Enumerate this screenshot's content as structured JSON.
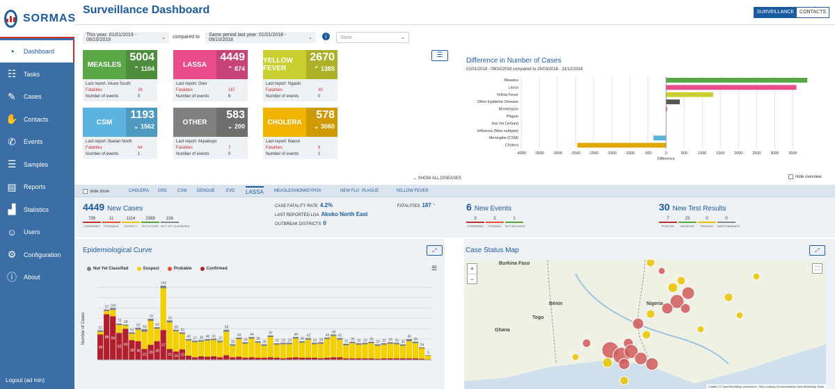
{
  "app": {
    "logo_text": "SORMAS",
    "title": "Surveillance Dashboard"
  },
  "sidebar": {
    "items": [
      {
        "label": "Dashboard",
        "icon": "dashboard-icon",
        "active": true
      },
      {
        "label": "Tasks",
        "icon": "tasks-icon"
      },
      {
        "label": "Cases",
        "icon": "edit-icon"
      },
      {
        "label": "Contacts",
        "icon": "hand-icon"
      },
      {
        "label": "Events",
        "icon": "phone-icon"
      },
      {
        "label": "Samples",
        "icon": "database-icon"
      },
      {
        "label": "Reports",
        "icon": "document-icon"
      },
      {
        "label": "Statistics",
        "icon": "bar-chart-icon"
      },
      {
        "label": "Users",
        "icon": "users-icon"
      },
      {
        "label": "Configuration",
        "icon": "cogs-icon"
      },
      {
        "label": "About",
        "icon": "info-icon"
      }
    ],
    "logout": "Logout (ad min)"
  },
  "header": {
    "toggle": [
      "SURVEILLANCE",
      "CONTACTS"
    ]
  },
  "filters": {
    "date_range": "This year: 01/01/2019 - 09/10/2019",
    "compared_to": "compared to",
    "comparison": "Same period last year: 01/01/2018 - 09/10/2018",
    "state_placeholder": "State"
  },
  "disease_cards": [
    {
      "name": "MEASLES",
      "total": "5004",
      "delta": "1104",
      "trend": "up",
      "color": "#5aa646",
      "last_report": "Last report: Akure South",
      "fatalities": "26",
      "events": "0"
    },
    {
      "name": "LASSA",
      "total": "4449",
      "delta": "874",
      "trend": "up",
      "color": "#e84d8a",
      "last_report": "Last report: Owo",
      "fatalities": "187",
      "events": "6"
    },
    {
      "name": "YELLOW FEVER",
      "total": "2670",
      "delta": "1385",
      "trend": "up",
      "color": "#c9cf2e",
      "last_report": "Last report: Ngaski",
      "fatalities": "30",
      "events": "0"
    },
    {
      "name": "CSM",
      "total": "1193",
      "delta": "1562",
      "trend": "down",
      "color": "#5bb3e0",
      "last_report": "Last report: Ibadan North",
      "fatalities": "64",
      "events": "1"
    },
    {
      "name": "OTHER",
      "total": "583",
      "delta": "200",
      "trend": "down",
      "color": "#808080",
      "last_report": "Last report: Akpabuyo",
      "fatalities": "7",
      "events": "0"
    },
    {
      "name": "CHOLERA",
      "total": "578",
      "delta": "3060",
      "trend": "down",
      "color": "#f0b400",
      "last_report": "Last report: Bakori",
      "fatalities": "9",
      "events": "1"
    }
  ],
  "card_labels": {
    "fatalities": "Fatalities",
    "events": "Number of events"
  },
  "show_all": "SHOW ALL DISEASES",
  "hide_overview": "Hide overview",
  "chart_data": {
    "type": "bar",
    "orientation": "horizontal",
    "title": "Difference in Number of Cases",
    "subtitle": "01/01/2019 - 09/10/2019 compared to 25/03/2018 - 31/12/2018",
    "xlabel": "Difference",
    "categories": [
      "Measles",
      "Lassa",
      "Yellow Fever",
      "Other Epidemic Disease",
      "Monkeypox",
      "Plague",
      "Not Yet Defined",
      "Influenza (New subtype)",
      "Meningitis (CSM)",
      "Cholera"
    ],
    "values": [
      3900,
      3600,
      1300,
      380,
      20,
      0,
      0,
      0,
      -350,
      -2450
    ],
    "colors": [
      "#5aa646",
      "#e84d8a",
      "#c9cf2e",
      "#555555",
      "#e84d8a",
      "#888888",
      "#888888",
      "#888888",
      "#5bb3e0",
      "#e0a800"
    ],
    "xlim": [
      -4000,
      3800
    ],
    "xticks": [
      -4000,
      -3500,
      -3000,
      -2500,
      -2000,
      -1500,
      -1000,
      -500,
      0,
      500,
      1000,
      1500,
      2000,
      2500,
      3000,
      3500
    ],
    "grid": true
  },
  "disease_tabs": {
    "slide_show": "slide show",
    "items": [
      "CHOLERA",
      "CRS",
      "CSM",
      "DENGUE",
      "EVD",
      "LASSA",
      "MEASLES",
      "MONKEYPOX",
      "NEW FLU",
      "PLAGUE",
      "YELLOW FEVER"
    ],
    "active": "LASSA"
  },
  "stats": {
    "new_cases": {
      "count": "4449",
      "label": "New Cases",
      "breakdown": [
        {
          "value": "739",
          "label": "CONFIRMED",
          "color": "#c52b2b"
        },
        {
          "value": "11",
          "label": "PROBABLE",
          "color": "#e8502b"
        },
        {
          "value": "1114",
          "label": "SUSPECT",
          "color": "#e8c400"
        },
        {
          "value": "2369",
          "label": "NOT A CASE",
          "color": "#5aa646"
        },
        {
          "value": "216",
          "label": "NOT YET CLASSIFIED",
          "color": "#888888"
        }
      ]
    },
    "cfr_label": "CASE FATALITY RATE",
    "cfr_value": "4.2%",
    "fatalities_label": "FATALITIES",
    "fatalities_value": "187",
    "lga_label": "LAST REPORTED LGA",
    "lga_value": "Akoko North East",
    "outbreak_label": "OUTBREAK DISTRICTS",
    "outbreak_value": "0",
    "new_events": {
      "count": "6",
      "label": "New Events",
      "breakdown": [
        {
          "value": "3",
          "label": "CONFIRMED",
          "color": "#c52b2b"
        },
        {
          "value": "2",
          "label": "POSSIBLE",
          "color": "#e8502b"
        },
        {
          "value": "1",
          "label": "NOT AN EVENT",
          "color": "#5aa646"
        }
      ]
    },
    "new_tests": {
      "count": "30",
      "label": "New Test Results",
      "breakdown": [
        {
          "value": "7",
          "label": "POSITIVE",
          "color": "#c52b2b"
        },
        {
          "value": "23",
          "label": "NEGATIVE",
          "color": "#5aa646"
        },
        {
          "value": "0",
          "label": "PENDING",
          "color": "#e8c400"
        },
        {
          "value": "0",
          "label": "INDETERMINATE",
          "color": "#888888"
        }
      ]
    }
  },
  "epi_curve": {
    "title": "Epidemiological Curve",
    "ylabel": "Number of Cases",
    "series_colors": {
      "not_yet_classified": "#808080",
      "suspect": "#f5d000",
      "probable": "#e8502b",
      "confirmed": "#b21e2b"
    },
    "legend": [
      "Not Yet Classified",
      "Suspect",
      "Probable",
      "Confirmed"
    ],
    "ylim": [
      0,
      150
    ],
    "totals": [
      57,
      97,
      100,
      70,
      68,
      53,
      62,
      59,
      79,
      63,
      143,
      76,
      58,
      53,
      40,
      37,
      38,
      40,
      41,
      37,
      58,
      30,
      43,
      34,
      44,
      36,
      30,
      47,
      32,
      33,
      33,
      44,
      36,
      42,
      33,
      34,
      43,
      49,
      42,
      31,
      35,
      32,
      33,
      35,
      30,
      32,
      34,
      33,
      30,
      40,
      35,
      24,
      9
    ],
    "confirmed": [
      49,
      88,
      84,
      52,
      60,
      38,
      36,
      21,
      29,
      36,
      57,
      21,
      16,
      20,
      8,
      5,
      7,
      6,
      7,
      5,
      9,
      5,
      6,
      4,
      5,
      4,
      4,
      5,
      4,
      3,
      4,
      5,
      4,
      4,
      4,
      3,
      4,
      5,
      5,
      3,
      3,
      3,
      3,
      3,
      2,
      3,
      3,
      3,
      3,
      3,
      3,
      2,
      1
    ],
    "probable": [
      0,
      0,
      0,
      0,
      0,
      0,
      0,
      0,
      0,
      0,
      1,
      0,
      0,
      0,
      0,
      0,
      0,
      0,
      0,
      0,
      0,
      0,
      0,
      0,
      0,
      0,
      0,
      0,
      0,
      0,
      0,
      0,
      0,
      0,
      0,
      0,
      0,
      0,
      0,
      0,
      0,
      0,
      0,
      0,
      0,
      0,
      0,
      0,
      0,
      0,
      0,
      0,
      0
    ],
    "not_yet_classified": [
      3,
      3,
      4,
      3,
      2,
      3,
      4,
      5,
      4,
      3,
      5,
      4,
      3,
      3,
      3,
      3,
      3,
      3,
      3,
      3,
      4,
      3,
      3,
      3,
      3,
      3,
      3,
      3,
      3,
      3,
      3,
      3,
      3,
      3,
      3,
      3,
      3,
      3,
      3,
      3,
      3,
      3,
      3,
      3,
      3,
      3,
      3,
      3,
      3,
      4,
      3,
      2,
      1
    ]
  },
  "map": {
    "title": "Case Status Map",
    "labels": [
      "Burkina Faso",
      "Bénin",
      "Togo",
      "Ghana",
      "Nigeria"
    ],
    "attribution": "Leaflet | © OpenStreetMap contributors. Tiles courtesy of Humanitarian OpenStreetMap Team"
  }
}
